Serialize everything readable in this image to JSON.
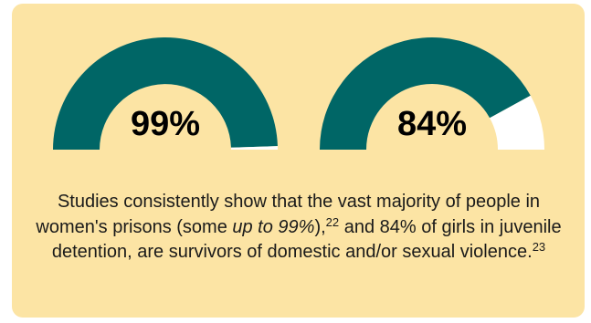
{
  "colors": {
    "background": "#fce4a4",
    "filled": "#006666",
    "remaining": "#ffffff"
  },
  "chart_data": [
    {
      "type": "pie",
      "style": "half-donut gauge",
      "values": [
        99,
        1
      ],
      "label": "99%",
      "max": 100
    },
    {
      "type": "pie",
      "style": "half-donut gauge",
      "values": [
        84,
        16
      ],
      "label": "84%",
      "max": 100
    }
  ],
  "caption": {
    "part1": "Studies consistently show that the vast majority of people in women's prisons (some ",
    "emphasis": "up to 99%",
    "part2": "),",
    "ref1": "22",
    "part3": " and 84% of girls in juvenile detention, are survivors of domestic and/or sexual violence.",
    "ref2": "23"
  }
}
